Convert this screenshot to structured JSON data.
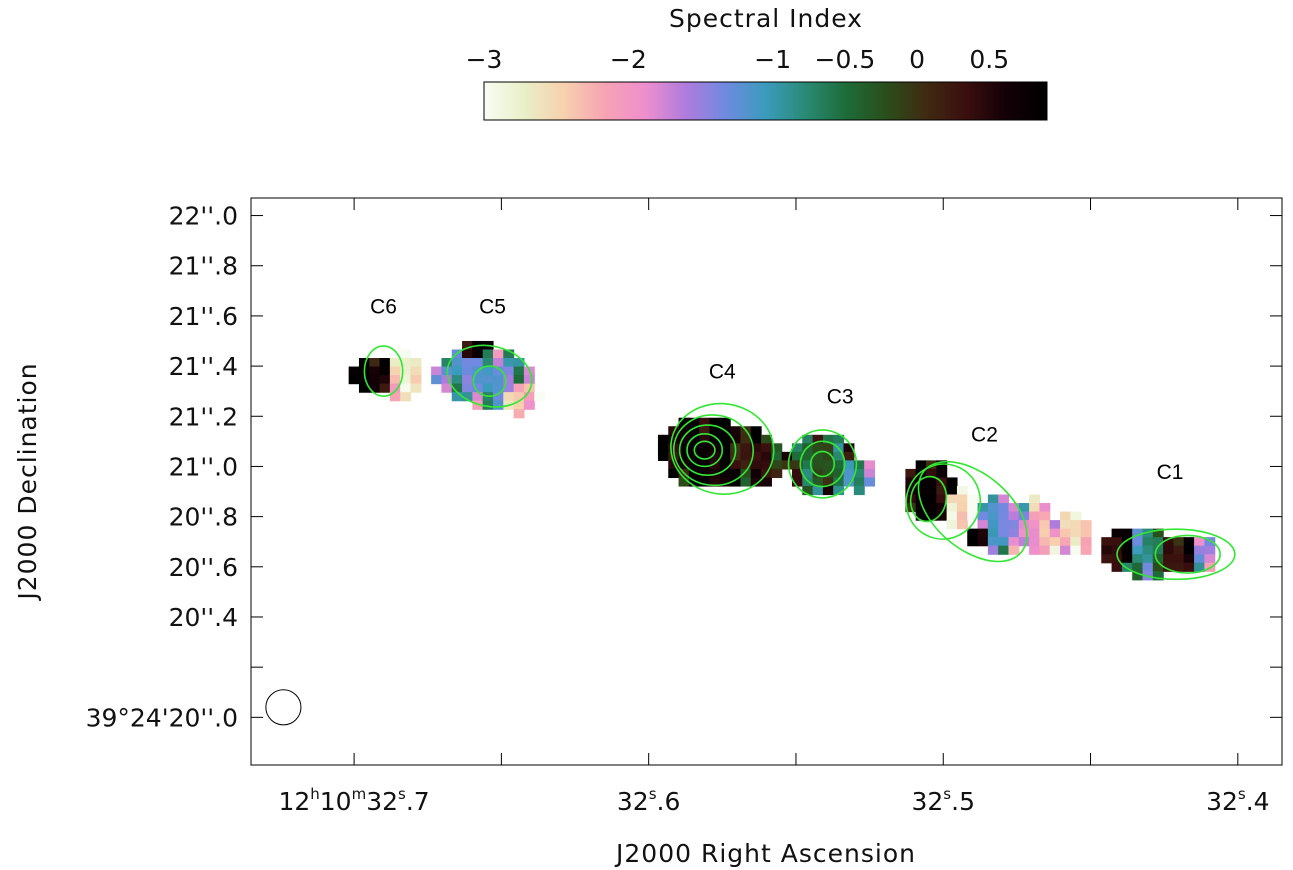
{
  "colorbar": {
    "label": "Spectral Index",
    "range": [
      -3.0,
      0.9
    ],
    "ticks": [
      -3,
      -2,
      -1,
      -0.5,
      0,
      0.5
    ],
    "tick_labels": [
      "−3",
      "−2",
      "−1",
      "−0.5",
      "0",
      "0.5"
    ],
    "colors": [
      "#f8fdf4",
      "#e9efc8",
      "#f7d0ae",
      "#f7a3b3",
      "#ee8fcc",
      "#b07cdd",
      "#6f8ae0",
      "#3b9bbd",
      "#2a8a74",
      "#1d6c39",
      "#2a4e1a",
      "#3f2a12",
      "#3a0e0e",
      "#120006",
      "#000000"
    ]
  },
  "chart_data": {
    "type": "heatmap",
    "title": "",
    "xlabel": "J2000 Right Ascension",
    "ylabel": "J2000 Declination",
    "x_ticks": [
      {
        "value": 32.7,
        "label_parts": [
          [
            "12",
            false
          ],
          [
            "h",
            true
          ],
          [
            "10",
            false
          ],
          [
            "m",
            true
          ],
          [
            "32",
            false
          ],
          [
            "s",
            true
          ],
          [
            ".7",
            false
          ]
        ]
      },
      {
        "value": 32.6,
        "label_parts": [
          [
            "32",
            false
          ],
          [
            "s",
            true
          ],
          [
            ".6",
            false
          ]
        ]
      },
      {
        "value": 32.5,
        "label_parts": [
          [
            "32",
            false
          ],
          [
            "s",
            true
          ],
          [
            ".5",
            false
          ]
        ]
      },
      {
        "value": 32.4,
        "label_parts": [
          [
            "32",
            false
          ],
          [
            "s",
            true
          ],
          [
            ".4",
            false
          ]
        ]
      }
    ],
    "x_minor_ticks": [
      32.65,
      32.55,
      32.45
    ],
    "xlim": [
      32.735,
      32.385
    ],
    "y_ticks": [
      {
        "value": 22.0,
        "label": "22''.0"
      },
      {
        "value": 21.8,
        "label": "21''.8"
      },
      {
        "value": 21.6,
        "label": "21''.6"
      },
      {
        "value": 21.4,
        "label": "21''.4"
      },
      {
        "value": 21.2,
        "label": "21''.2"
      },
      {
        "value": 21.0,
        "label": "21''.0"
      },
      {
        "value": 20.8,
        "label": "20''.8"
      },
      {
        "value": 20.6,
        "label": "20''.6"
      },
      {
        "value": 20.4,
        "label": "20''.4"
      },
      {
        "value": 20.0,
        "label": "39°24'20''.0"
      }
    ],
    "y_minor_ticks": [
      20.2
    ],
    "ylim": [
      19.81,
      22.07
    ],
    "components": [
      {
        "name": "C6",
        "ra": 32.69,
        "dec": 21.38,
        "label_ra": 32.69,
        "label_dec": 21.61
      },
      {
        "name": "C5",
        "ra": 32.654,
        "dec": 21.35,
        "label_ra": 32.653,
        "label_dec": 21.61
      },
      {
        "name": "C4",
        "ra": 32.581,
        "dec": 21.06,
        "label_ra": 32.575,
        "label_dec": 21.35
      },
      {
        "name": "C3",
        "ra": 32.541,
        "dec": 21.01,
        "label_ra": 32.535,
        "label_dec": 21.25
      },
      {
        "name": "C2",
        "ra": 32.505,
        "dec": 20.86,
        "label_ra": 32.486,
        "label_dec": 21.1
      },
      {
        "name": "C1",
        "ra": 32.421,
        "dec": 20.65,
        "label_ra": 32.423,
        "label_dec": 20.95
      }
    ],
    "contour_color": "#33e633",
    "beam": {
      "ra": 32.724,
      "dec": 20.04,
      "diameter_arcsec": 0.14
    }
  }
}
